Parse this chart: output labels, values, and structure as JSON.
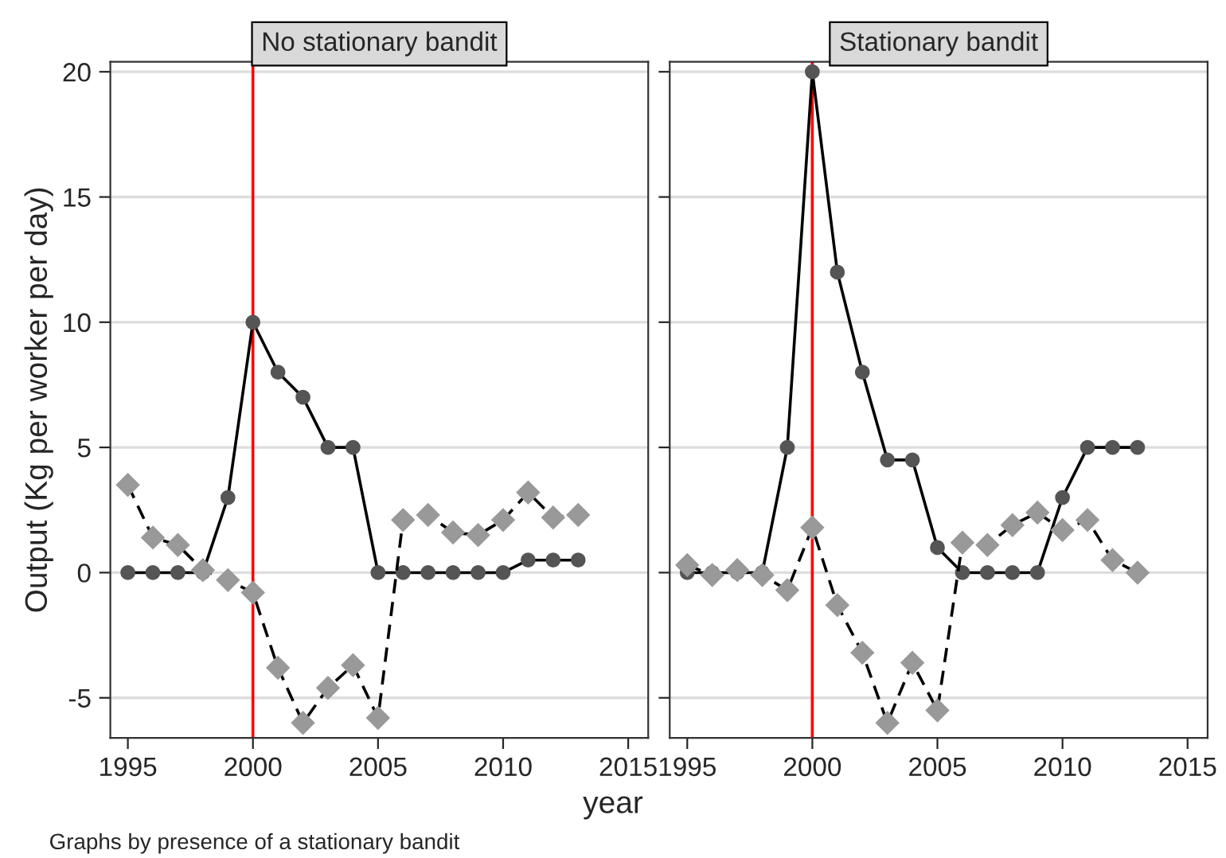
{
  "chart_data": [
    {
      "type": "line",
      "title": "No stationary bandit",
      "ylabel": "Output (Kg per worker per day)",
      "annotations": [
        "Graphs by presence of a stationary bandit"
      ],
      "x": [
        1995,
        1996,
        1997,
        1998,
        1999,
        2000,
        2001,
        2002,
        2003,
        2004,
        2005,
        2006,
        2007,
        2008,
        2009,
        2010,
        2011,
        2012,
        2013
      ],
      "series": [
        {
          "color": "#555555",
          "marker": "circle",
          "line_style": "solid",
          "values": [
            0,
            0,
            0,
            0,
            3,
            10,
            8,
            7,
            5,
            5,
            0,
            0,
            0,
            0,
            0,
            0,
            0.5,
            0.5,
            0.5
          ]
        },
        {
          "color": "#999999",
          "marker": "diamond",
          "line_style": "dashed",
          "values": [
            3.5,
            1.4,
            1.1,
            0.1,
            -0.3,
            -0.8,
            -3.8,
            -6.0,
            -4.6,
            -3.7,
            -5.8,
            2.1,
            2.3,
            1.6,
            1.5,
            2.1,
            3.2,
            2.2,
            2.3
          ]
        }
      ],
      "xlim": [
        1994.3,
        2015.8
      ],
      "ylim": [
        -6.6,
        20.4
      ],
      "xticks": [
        1995,
        2000,
        2005,
        2010,
        2015
      ],
      "yticks": [
        -5,
        0,
        5,
        10,
        15,
        20
      ],
      "grid": "y",
      "ref_lines": [
        {
          "axis": "x",
          "value": 2000,
          "color": "#ff0000"
        }
      ]
    },
    {
      "type": "line",
      "title": "Stationary bandit",
      "xlabel": "year",
      "x": [
        1995,
        1996,
        1997,
        1998,
        1999,
        2000,
        2001,
        2002,
        2003,
        2004,
        2005,
        2006,
        2007,
        2008,
        2009,
        2010,
        2011,
        2012,
        2013
      ],
      "series": [
        {
          "color": "#555555",
          "marker": "circle",
          "line_style": "solid",
          "values": [
            0,
            0,
            0,
            0,
            5,
            20,
            12,
            8,
            4.5,
            4.5,
            1,
            0,
            0,
            0,
            0,
            3,
            5,
            5,
            5
          ]
        },
        {
          "color": "#999999",
          "marker": "diamond",
          "line_style": "dashed",
          "values": [
            0.3,
            -0.1,
            0.1,
            -0.1,
            -0.7,
            1.8,
            -1.3,
            -3.2,
            -6.0,
            -3.6,
            -5.5,
            1.2,
            1.1,
            1.9,
            2.4,
            1.7,
            2.1,
            0.5,
            0
          ]
        }
      ],
      "xlim": [
        1994.3,
        2015.8
      ],
      "ylim": [
        -6.6,
        20.4
      ],
      "xticks": [
        1995,
        2000,
        2005,
        2010,
        2015
      ],
      "yticks": [
        -5,
        0,
        5,
        10,
        15,
        20
      ],
      "grid": "y",
      "tick_labels": "x",
      "ref_lines": [
        {
          "axis": "x",
          "value": 2000,
          "color": "#ff0000"
        }
      ]
    }
  ]
}
